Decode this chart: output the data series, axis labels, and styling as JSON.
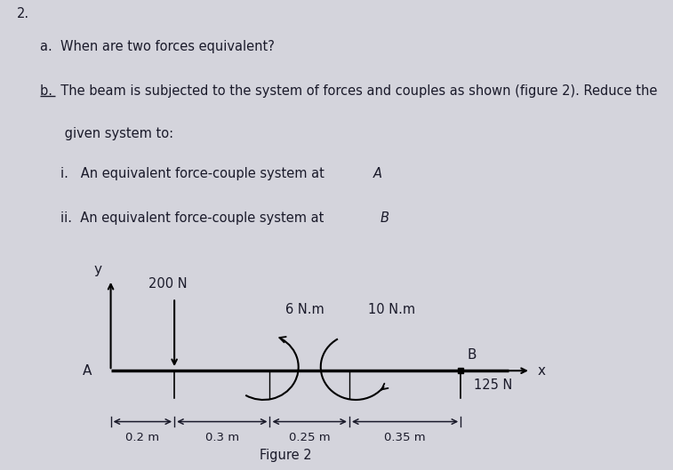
{
  "bg_color": "#d4d4dc",
  "text_color": "#1a1a2a",
  "question_number": "2.",
  "part_a": "a.  When are two forces equivalent?",
  "part_b_line1": "b.  The beam is subjected to the system of forces and couples as shown (figure 2). Reduce the",
  "part_b_line2": "      given system to:",
  "part_i": "i.   An equivalent force-couple system at ",
  "part_i_italic": "A",
  "part_ii": "ii.  An equivalent force-couple system at ",
  "part_ii_italic": "B",
  "figure_label": "Figure 2",
  "force_200N_label": "200 N",
  "couple_6Nm_label": "6 N.m",
  "couple_10Nm_label": "10 N.m",
  "force_125N_label": "125 N",
  "dim_0p2": "0.2 m",
  "dim_0p3": "0.3 m",
  "dim_0p25": "0.25 m",
  "dim_0p35": "0.35 m"
}
